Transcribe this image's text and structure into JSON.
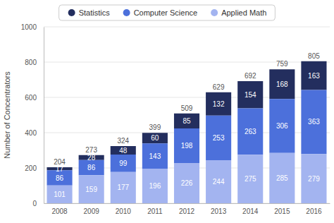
{
  "chart_data": {
    "type": "bar",
    "stacked": true,
    "data_labels": true,
    "grid": true,
    "legend": "top",
    "y_label": "Number of Concentrators",
    "categories": [
      "2008",
      "2009",
      "2010",
      "2011",
      "2012",
      "2013",
      "2014",
      "2015",
      "2016"
    ],
    "series": [
      {
        "name": "Statistics",
        "color": "#232e5e",
        "values": [
          17,
          28,
          48,
          60,
          85,
          132,
          154,
          168,
          163
        ]
      },
      {
        "name": "Computer Science",
        "color": "#4c70db",
        "values": [
          86,
          86,
          99,
          143,
          198,
          253,
          263,
          306,
          363
        ]
      },
      {
        "name": "Applied Math",
        "color": "#a3b4f0",
        "values": [
          101,
          159,
          177,
          196,
          226,
          244,
          275,
          285,
          279
        ]
      }
    ],
    "totals": [
      204,
      273,
      324,
      399,
      509,
      629,
      692,
      759,
      805
    ],
    "ylim": [
      0,
      1000
    ],
    "yticks": [
      0,
      200,
      400,
      600,
      800,
      1000
    ]
  }
}
